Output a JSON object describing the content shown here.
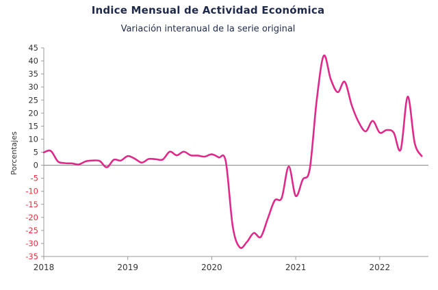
{
  "chart_data": {
    "type": "line",
    "title": "Indice Mensual de  Actividad Económica",
    "subtitle": "Variación interanual de la serie original",
    "ylabel": "Porcentajes",
    "xlabel": "",
    "ylim": [
      -35,
      45
    ],
    "yticks": [
      45,
      40,
      35,
      30,
      25,
      20,
      15,
      10,
      5,
      0,
      -5,
      -10,
      -15,
      -20,
      -25,
      -30,
      -35
    ],
    "xticks": [
      "2018",
      "2019",
      "2020",
      "2021",
      "2022"
    ],
    "grid": false,
    "series": [
      {
        "color": "#e0288a",
        "x": [
          "2018-01",
          "2018-02",
          "2018-03",
          "2018-04",
          "2018-05",
          "2018-06",
          "2018-07",
          "2018-08",
          "2018-09",
          "2018-10",
          "2018-11",
          "2018-12",
          "2019-01",
          "2019-02",
          "2019-03",
          "2019-04",
          "2019-05",
          "2019-06",
          "2019-07",
          "2019-08",
          "2019-09",
          "2019-10",
          "2019-11",
          "2019-12",
          "2020-01",
          "2020-02",
          "2020-03",
          "2020-04",
          "2020-05",
          "2020-06",
          "2020-07",
          "2020-08",
          "2020-09",
          "2020-10",
          "2020-11",
          "2020-12",
          "2021-01",
          "2021-02",
          "2021-03",
          "2021-04",
          "2021-05",
          "2021-06",
          "2021-07",
          "2021-08",
          "2021-09",
          "2021-10",
          "2021-11",
          "2021-12",
          "2022-01",
          "2022-02",
          "2022-03",
          "2022-04",
          "2022-05",
          "2022-06",
          "2022-07"
        ],
        "values": [
          4.9,
          5.5,
          1.5,
          0.8,
          0.7,
          0.3,
          1.5,
          1.8,
          1.6,
          -0.8,
          2.1,
          1.8,
          3.5,
          2.5,
          1.0,
          2.4,
          2.3,
          2.2,
          5.2,
          3.8,
          5.2,
          3.8,
          3.7,
          3.3,
          4.2,
          3.0,
          1.5,
          -23.5,
          -31.5,
          -29.5,
          -26.0,
          -27.5,
          -20.5,
          -13.5,
          -12.5,
          -0.5,
          -11.8,
          -5.5,
          -1.5,
          25.0,
          42.0,
          33.0,
          28.0,
          32.0,
          23.0,
          16.5,
          13.0,
          17.0,
          12.5,
          13.5,
          12.5,
          6.0,
          26.3,
          8.5,
          3.5
        ]
      }
    ]
  }
}
